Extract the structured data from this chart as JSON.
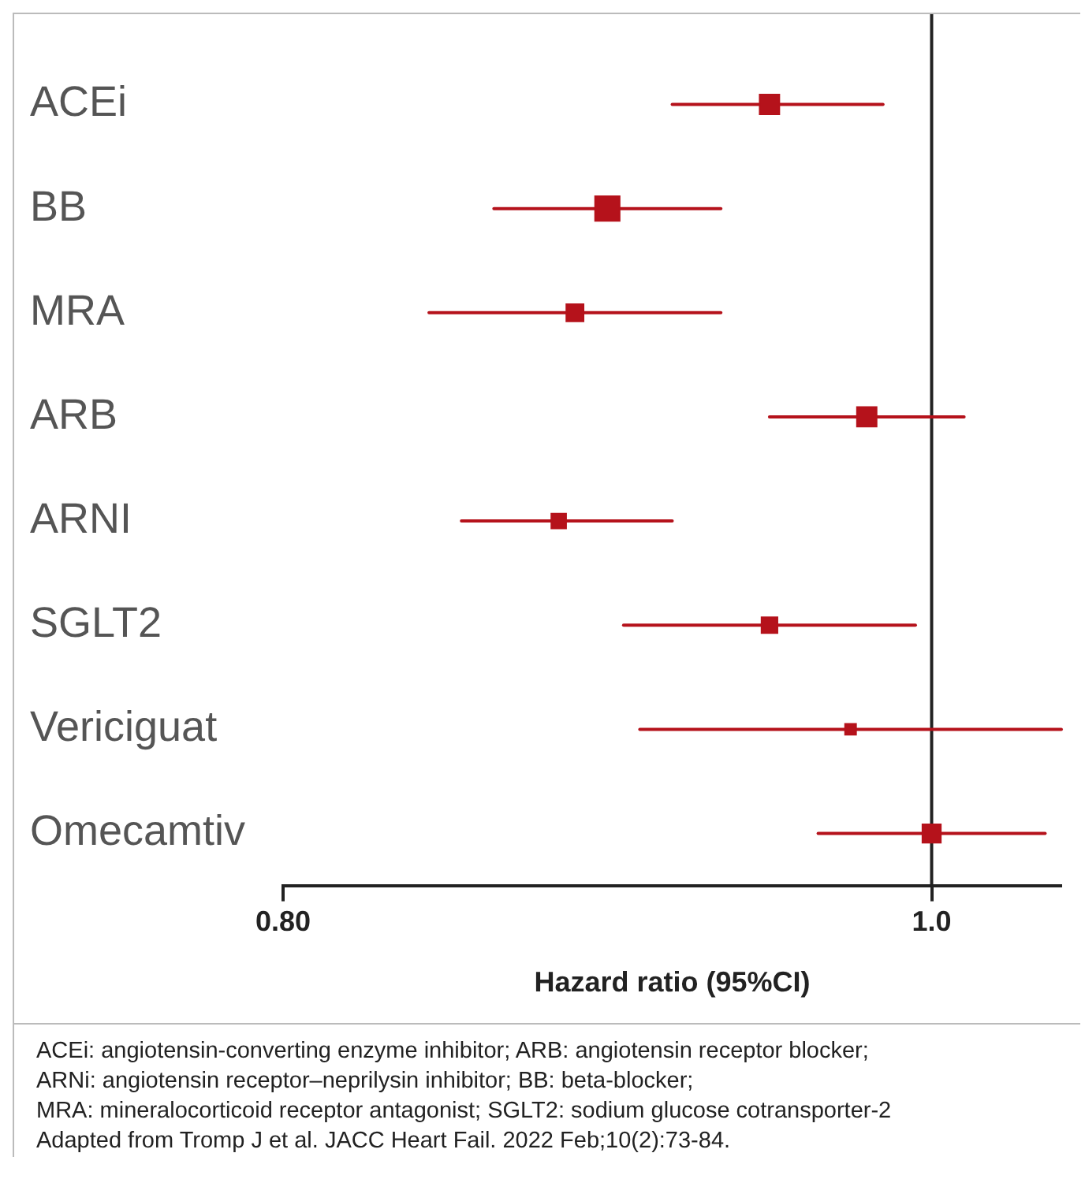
{
  "chart_data": {
    "type": "bubble",
    "orientation": "horizontal",
    "marker": "square",
    "color": "#b5121b",
    "categories": [
      "ACEi",
      "BB",
      "MRA",
      "ARB",
      "ARNI",
      "SGLT2",
      "Vericiguat",
      "Omecamtiv"
    ],
    "values": [
      0.95,
      0.9,
      0.89,
      0.98,
      0.885,
      0.95,
      0.975,
      1.0
    ],
    "errors": [
      [
        0.92,
        0.985
      ],
      [
        0.865,
        0.935
      ],
      [
        0.845,
        0.935
      ],
      [
        0.95,
        1.01
      ],
      [
        0.855,
        0.92
      ],
      [
        0.905,
        0.995
      ],
      [
        0.91,
        1.04
      ],
      [
        0.965,
        1.035
      ]
    ],
    "sizes": [
      0.64,
      1,
      0.49,
      0.64,
      0.36,
      0.42,
      0.2,
      0.56
    ],
    "xlim": [
      0.8,
      1.04
    ],
    "xticks": [
      {
        "value": 0.8,
        "label": "0.80"
      },
      {
        "value": 1,
        "label": "1.0"
      }
    ],
    "xlabel": "Hazard ratio (95%CI)",
    "ref_lines": [
      {
        "axis": "x",
        "value": 1,
        "color": "#222222"
      }
    ],
    "legend": false,
    "annotations": [
      "ACEi: angiotensin-converting enzyme inhibitor; ARB: angiotensin receptor blocker;",
      "ARNi: angiotensin receptor–neprilysin inhibitor; BB: beta-blocker;",
      "MRA: mineralocorticoid receptor antagonist; SGLT2: sodium glucose cotransporter-2",
      "Adapted from Tromp J et al. JACC Heart Fail. 2022 Feb;10(2):73-84."
    ]
  }
}
